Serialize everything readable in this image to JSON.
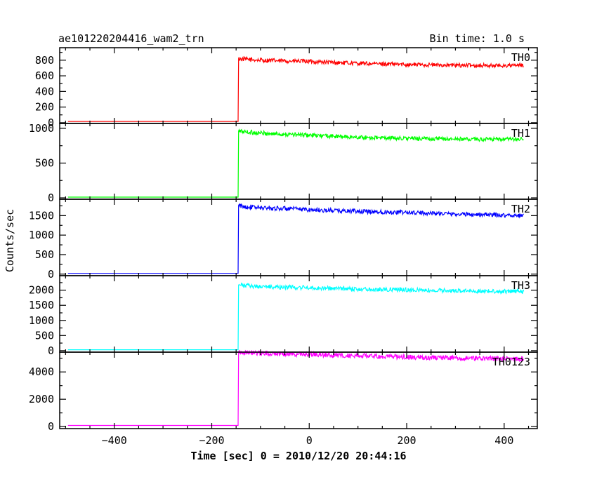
{
  "chart_data": {
    "type": "line",
    "title": "ae101220204416_wam2_trn",
    "subtitle": "Bin time: 1.0 s",
    "xlabel": "Time [sec] 0 = 2010/12/20 20:44:16",
    "ylabel": "Counts/sec",
    "xlim": [
      -512,
      468
    ],
    "x_ticks": [
      -400,
      -200,
      0,
      200,
      400
    ],
    "x_tick_labels": [
      "−400",
      "−200",
      "0",
      "200",
      "400"
    ],
    "grid": false,
    "panels": [
      {
        "name": "TH0",
        "color": "#ff0000",
        "ylim": [
          -10,
          960
        ],
        "y_ticks": [
          0,
          200,
          400,
          600,
          800
        ],
        "y_tick_labels": [
          "0",
          "200",
          "400",
          "600",
          "800"
        ],
        "series": {
          "x": [
            -495,
            -146,
            -145,
            -140,
            -100,
            -50,
            0,
            50,
            100,
            200,
            300,
            400,
            440
          ],
          "y": [
            15,
            15,
            820,
            815,
            800,
            790,
            785,
            770,
            760,
            745,
            735,
            730,
            735
          ]
        }
      },
      {
        "name": "TH1",
        "color": "#00ff00",
        "ylim": [
          -20,
          1070
        ],
        "y_ticks": [
          0,
          500,
          1000
        ],
        "y_tick_labels": [
          "0",
          "500",
          "1000"
        ],
        "series": {
          "x": [
            -495,
            -146,
            -145,
            -140,
            -100,
            -50,
            0,
            50,
            100,
            200,
            300,
            400,
            440
          ],
          "y": [
            10,
            10,
            960,
            955,
            930,
            915,
            900,
            885,
            870,
            855,
            845,
            840,
            845
          ]
        }
      },
      {
        "name": "TH2",
        "color": "#0000ff",
        "ylim": [
          -40,
          1920
        ],
        "y_ticks": [
          0,
          500,
          1000,
          1500
        ],
        "y_tick_labels": [
          "0",
          "500",
          "1000",
          "1500"
        ],
        "series": {
          "x": [
            -495,
            -146,
            -145,
            -140,
            -100,
            -50,
            0,
            50,
            100,
            200,
            300,
            400,
            440
          ],
          "y": [
            20,
            20,
            1760,
            1740,
            1700,
            1680,
            1650,
            1630,
            1610,
            1580,
            1540,
            1510,
            1500
          ]
        }
      },
      {
        "name": "TH3",
        "color": "#00ffff",
        "ylim": [
          -50,
          2480
        ],
        "y_ticks": [
          0,
          500,
          1000,
          1500,
          2000
        ],
        "y_tick_labels": [
          "0",
          "500",
          "1000",
          "1500",
          "2000"
        ],
        "series": {
          "x": [
            -495,
            -146,
            -145,
            -140,
            -100,
            -50,
            0,
            50,
            100,
            200,
            300,
            400,
            440
          ],
          "y": [
            30,
            30,
            2170,
            2160,
            2120,
            2100,
            2080,
            2060,
            2040,
            2010,
            1980,
            1960,
            1960
          ]
        }
      },
      {
        "name": "TH0123",
        "color": "#ff00ff",
        "ylim": [
          -150,
          5450
        ],
        "y_ticks": [
          0,
          2000,
          4000
        ],
        "y_tick_labels": [
          "0",
          "2000",
          "4000"
        ],
        "series": {
          "x": [
            -495,
            -146,
            -145,
            -140,
            -100,
            -50,
            0,
            50,
            100,
            200,
            300,
            400,
            440
          ],
          "y": [
            80,
            80,
            5500,
            5450,
            5380,
            5330,
            5280,
            5230,
            5180,
            5100,
            5020,
            4960,
            4950
          ]
        }
      }
    ]
  }
}
